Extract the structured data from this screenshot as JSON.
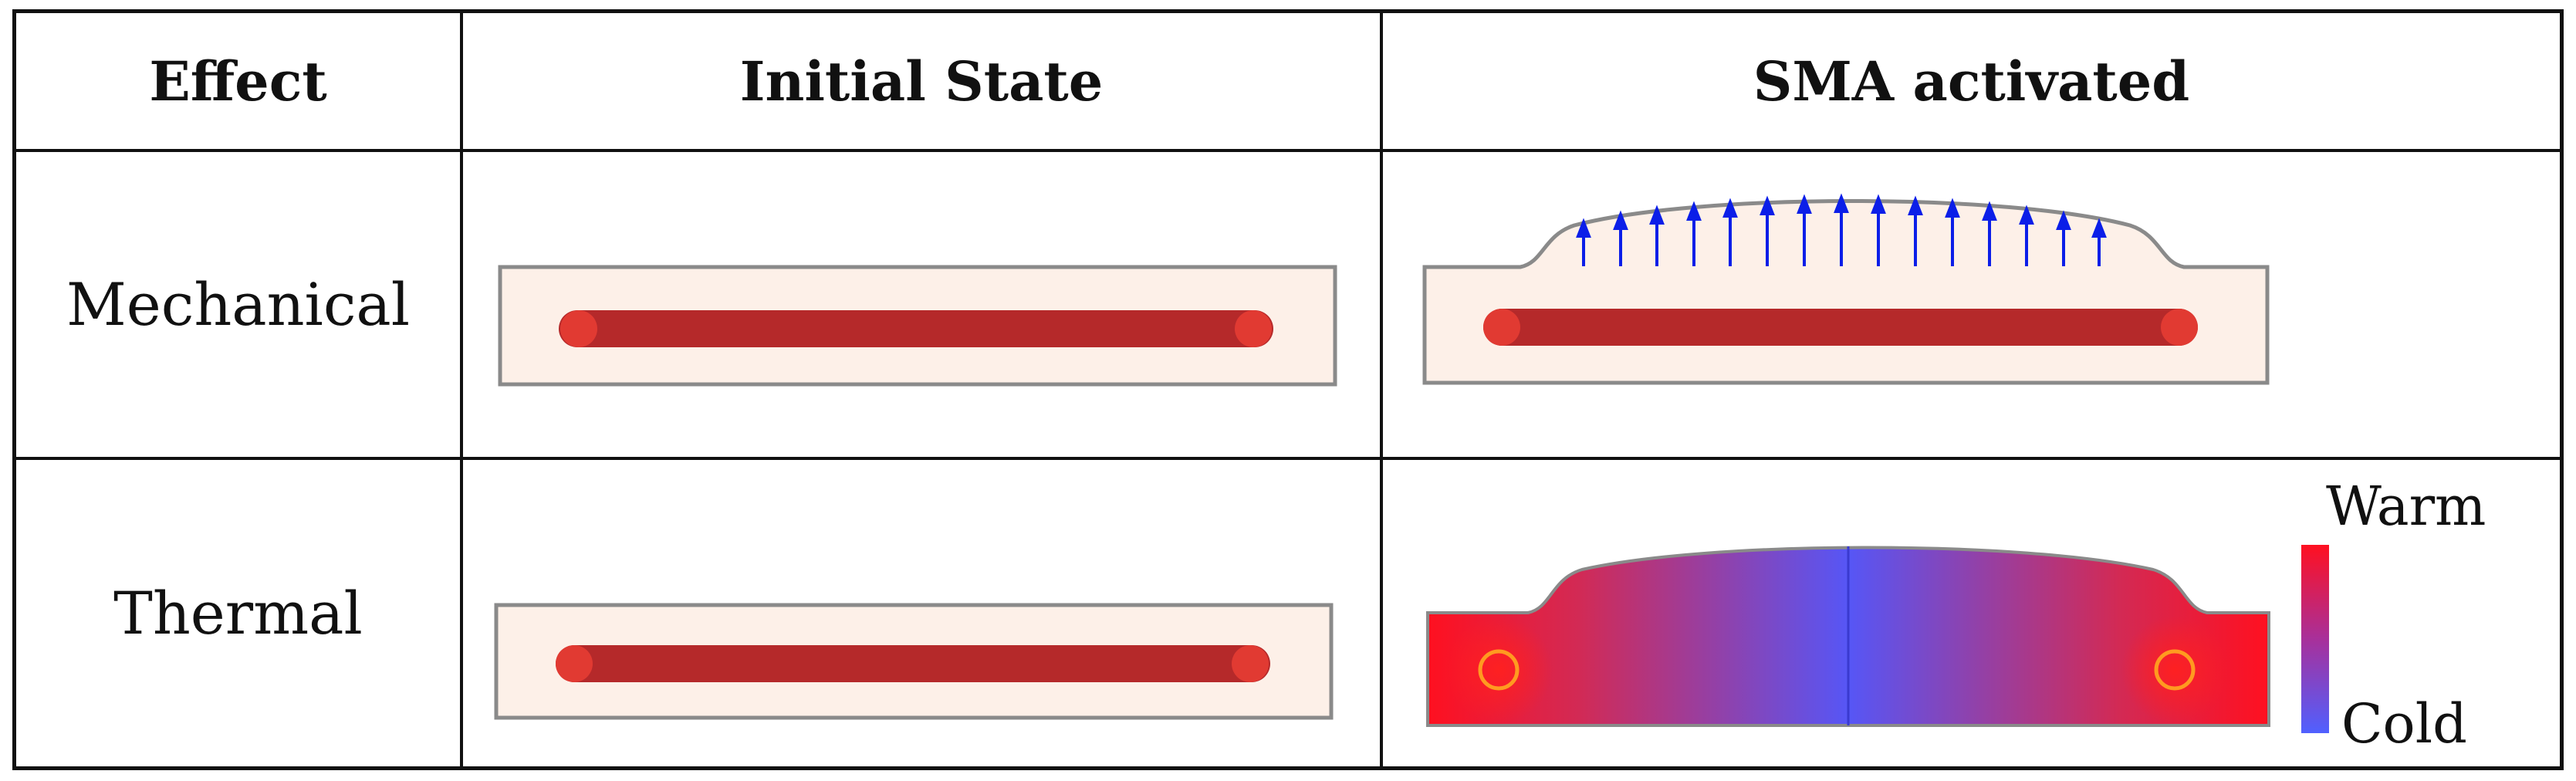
{
  "header": {
    "effect": "Effect",
    "initial_state": "Initial State",
    "sma_activated": "SMA activated"
  },
  "rows": [
    {
      "label": "Mechanical"
    },
    {
      "label": "Thermal"
    }
  ],
  "colorbar": {
    "top_label": "Warm",
    "bottom_label": "Cold",
    "warm_color": "#ff1020",
    "cold_color": "#5060ff"
  },
  "colors": {
    "substrate": "#fdf0e8",
    "substrate_border": "#8a8a8a",
    "sma_wire": "#b5292a",
    "sma_wire_end": "#e13a32",
    "force_arrows": "#0b1ee8"
  }
}
